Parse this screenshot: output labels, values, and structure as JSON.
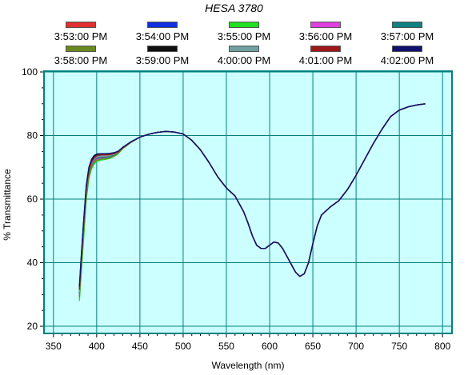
{
  "chart_data": {
    "type": "line",
    "title": "HESA 3780",
    "xlabel": "Wavelength (nm)",
    "ylabel": "% Transmittance",
    "xlim": [
      340,
      810
    ],
    "ylim": [
      18,
      100
    ],
    "x_ticks": [
      350,
      400,
      450,
      500,
      550,
      600,
      650,
      700,
      750,
      800
    ],
    "y_ticks": [
      20,
      40,
      60,
      80,
      100
    ],
    "grid": true,
    "legend_position": "top",
    "plot_background": "#ccffff",
    "grid_color": "#008080",
    "x": [
      380,
      382,
      385,
      388,
      391,
      394,
      397,
      400,
      405,
      410,
      415,
      420,
      425,
      430,
      440,
      450,
      460,
      470,
      480,
      490,
      500,
      510,
      520,
      530,
      540,
      550,
      560,
      570,
      575,
      580,
      585,
      590,
      595,
      600,
      605,
      610,
      615,
      620,
      625,
      630,
      635,
      640,
      645,
      650,
      655,
      660,
      670,
      680,
      690,
      700,
      710,
      720,
      730,
      740,
      750,
      760,
      770,
      780
    ],
    "series": [
      {
        "name": "3:53:00 PM",
        "color": "#e03030",
        "values": [
          31,
          40,
          52,
          63,
          68.5,
          71,
          72.3,
          73,
          73.3,
          73.3,
          73.5,
          74,
          74.6,
          76,
          78,
          79.5,
          80.4,
          81,
          81.3,
          81.1,
          80.5,
          78.5,
          75.5,
          71.5,
          67,
          63.5,
          61,
          56,
          52.5,
          48.5,
          45.5,
          44.5,
          44.5,
          45.5,
          46.5,
          46.2,
          44.5,
          42,
          39.5,
          37,
          35.7,
          36.5,
          40,
          46,
          51.5,
          55,
          57.5,
          59.5,
          63,
          67.5,
          72.5,
          77.5,
          82,
          86,
          88,
          89,
          89.6,
          90
        ]
      },
      {
        "name": "3:54:00 PM",
        "color": "#1030e0",
        "values": [
          30,
          39,
          51,
          62.5,
          68,
          70.7,
          72,
          72.7,
          73,
          73,
          73.3,
          73.8,
          74.5,
          76,
          78,
          79.5,
          80.4,
          81,
          81.3,
          81.1,
          80.5,
          78.5,
          75.5,
          71.5,
          67,
          63.5,
          61,
          56,
          52.5,
          48.5,
          45.5,
          44.5,
          44.5,
          45.5,
          46.5,
          46.2,
          44.5,
          42,
          39.5,
          37,
          35.7,
          36.5,
          40,
          46,
          51.5,
          55,
          57.5,
          59.5,
          63,
          67.5,
          72.5,
          77.5,
          82,
          86,
          88,
          89,
          89.6,
          90
        ]
      },
      {
        "name": "3:55:00 PM",
        "color": "#20e020",
        "values": [
          28,
          36,
          48,
          60,
          66.5,
          69.5,
          71,
          71.8,
          72.3,
          72.5,
          72.8,
          73.4,
          74.3,
          75.8,
          77.9,
          79.5,
          80.4,
          81,
          81.3,
          81.1,
          80.5,
          78.5,
          75.5,
          71.5,
          67,
          63.5,
          61,
          56,
          52.5,
          48.5,
          45.5,
          44.5,
          44.5,
          45.5,
          46.5,
          46.2,
          44.5,
          42,
          39.5,
          37,
          35.7,
          36.5,
          40,
          46,
          51.5,
          55,
          57.5,
          59.5,
          63,
          67.5,
          72.5,
          77.5,
          82,
          86,
          88,
          89,
          89.6,
          90
        ]
      },
      {
        "name": "3:56:00 PM",
        "color": "#e040e0",
        "values": [
          29.5,
          38.5,
          50.5,
          62,
          67.8,
          70.5,
          71.8,
          72.5,
          72.8,
          72.9,
          73.2,
          73.7,
          74.5,
          76,
          78,
          79.5,
          80.4,
          81,
          81.3,
          81.1,
          80.5,
          78.5,
          75.5,
          71.5,
          67,
          63.5,
          61,
          56,
          52.5,
          48.5,
          45.5,
          44.5,
          44.5,
          45.5,
          46.5,
          46.2,
          44.5,
          42,
          39.5,
          37,
          35.7,
          36.5,
          40,
          46,
          51.5,
          55,
          57.5,
          59.5,
          63,
          67.5,
          72.5,
          77.5,
          82,
          86,
          88,
          89,
          89.6,
          90
        ]
      },
      {
        "name": "3:57:00 PM",
        "color": "#108080",
        "values": [
          30.5,
          39.5,
          51.5,
          62.8,
          68.3,
          70.9,
          72.2,
          72.9,
          73.2,
          73.2,
          73.4,
          73.9,
          74.6,
          76,
          78,
          79.5,
          80.4,
          81,
          81.3,
          81.1,
          80.5,
          78.5,
          75.5,
          71.5,
          67,
          63.5,
          61,
          56,
          52.5,
          48.5,
          45.5,
          44.5,
          44.5,
          45.5,
          46.5,
          46.2,
          44.5,
          42,
          39.5,
          37,
          35.7,
          36.5,
          40,
          46,
          51.5,
          55,
          57.5,
          59.5,
          63,
          67.5,
          72.5,
          77.5,
          82,
          86,
          88,
          89,
          89.6,
          90
        ]
      },
      {
        "name": "3:58:00 PM",
        "color": "#6a8a20",
        "values": [
          29,
          37.5,
          49.5,
          61,
          67,
          70,
          71.4,
          72.2,
          72.6,
          72.7,
          73,
          73.5,
          74.4,
          75.9,
          77.9,
          79.5,
          80.4,
          81,
          81.3,
          81.1,
          80.5,
          78.5,
          75.5,
          71.5,
          67,
          63.5,
          61,
          56,
          52.5,
          48.5,
          45.5,
          44.5,
          44.5,
          45.5,
          46.5,
          46.2,
          44.5,
          42,
          39.5,
          37,
          35.7,
          36.5,
          40,
          46,
          51.5,
          55,
          57.5,
          59.5,
          63,
          67.5,
          72.5,
          77.5,
          82,
          86,
          88,
          89,
          89.6,
          90
        ]
      },
      {
        "name": "3:59:00 PM",
        "color": "#101010",
        "values": [
          32,
          41,
          53,
          64,
          69.5,
          72,
          73.4,
          74,
          74.2,
          74.2,
          74.3,
          74.5,
          75,
          76.2,
          78.1,
          79.5,
          80.4,
          81,
          81.3,
          81.1,
          80.5,
          78.5,
          75.5,
          71.5,
          67,
          63.5,
          61,
          56,
          52.5,
          48.5,
          45.5,
          44.5,
          44.5,
          45.5,
          46.5,
          46.2,
          44.5,
          42,
          39.5,
          37,
          35.7,
          36.5,
          40,
          46,
          51.5,
          55,
          57.5,
          59.5,
          63,
          67.5,
          72.5,
          77.5,
          82,
          86,
          88,
          89,
          89.6,
          90
        ]
      },
      {
        "name": "4:00:00 PM",
        "color": "#70a0a0",
        "values": [
          30.8,
          39.8,
          51.8,
          63,
          68.6,
          71.2,
          72.5,
          73.2,
          73.5,
          73.5,
          73.7,
          74.1,
          74.8,
          76.1,
          78,
          79.5,
          80.4,
          81,
          81.3,
          81.1,
          80.5,
          78.5,
          75.5,
          71.5,
          67,
          63.5,
          61,
          56,
          52.5,
          48.5,
          45.5,
          44.5,
          44.5,
          45.5,
          46.5,
          46.2,
          44.5,
          42,
          39.5,
          37,
          35.7,
          36.5,
          40,
          46,
          51.5,
          55,
          57.5,
          59.5,
          63,
          67.5,
          72.5,
          77.5,
          82,
          86,
          88,
          89,
          89.6,
          90
        ]
      },
      {
        "name": "4:01:00 PM",
        "color": "#a01818",
        "values": [
          31.5,
          40.5,
          52.5,
          63.5,
          69,
          71.6,
          72.9,
          73.6,
          73.9,
          73.9,
          74,
          74.3,
          74.9,
          76.1,
          78,
          79.5,
          80.4,
          81,
          81.3,
          81.1,
          80.5,
          78.5,
          75.5,
          71.5,
          67,
          63.5,
          61,
          56,
          52.5,
          48.5,
          45.5,
          44.5,
          44.5,
          45.5,
          46.5,
          46.2,
          44.5,
          42,
          39.5,
          37,
          35.7,
          36.5,
          40,
          46,
          51.5,
          55,
          57.5,
          59.5,
          63,
          67.5,
          72.5,
          77.5,
          82,
          86,
          88,
          89,
          89.6,
          90
        ]
      },
      {
        "name": "4:02:00 PM",
        "color": "#101070",
        "values": [
          32.5,
          41.5,
          53.5,
          64.5,
          70,
          72.5,
          73.7,
          74.2,
          74.3,
          74.3,
          74.4,
          74.6,
          75.1,
          76.3,
          78.1,
          79.5,
          80.4,
          81,
          81.3,
          81.1,
          80.5,
          78.5,
          75.5,
          71.5,
          67,
          63.5,
          61,
          56,
          52.5,
          48.5,
          45.5,
          44.5,
          44.5,
          45.5,
          46.5,
          46.2,
          44.5,
          42,
          39.5,
          37,
          35.7,
          36.5,
          40,
          46,
          51.5,
          55,
          57.5,
          59.5,
          63,
          67.5,
          72.5,
          77.5,
          82,
          86,
          88,
          89,
          89.6,
          90
        ]
      }
    ]
  }
}
